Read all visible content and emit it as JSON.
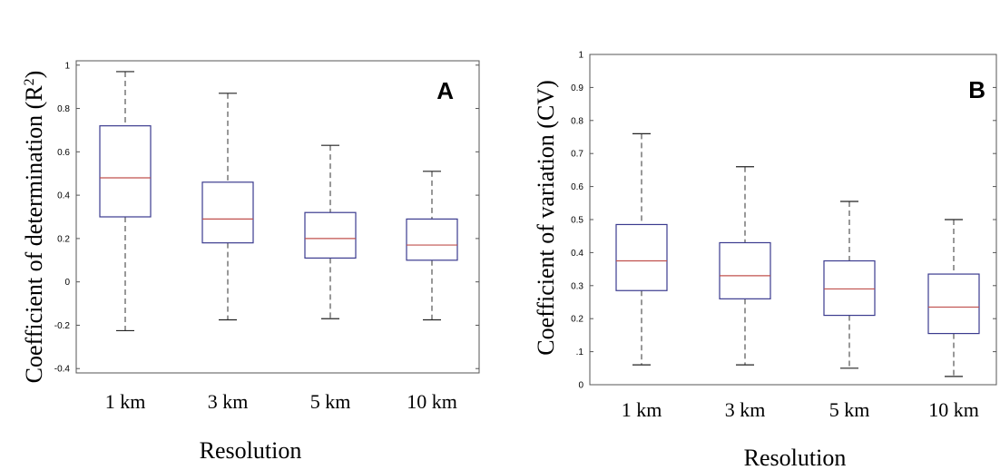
{
  "chart_data": [
    {
      "type": "box",
      "panel_label": "A",
      "xlabel": "Resolution",
      "ylabel": "Coefficient of determination (R",
      "ylabel_sup": "2",
      "ylabel_close": ")",
      "categories": [
        "1 km",
        "3 km",
        "5 km",
        "10 km"
      ],
      "ylim": [
        -0.42,
        1.02
      ],
      "yticks": [
        -0.4,
        -0.2,
        0,
        0.2,
        0.4,
        0.6,
        0.8,
        1
      ],
      "ytick_labels": [
        "-0.4",
        "-0.2",
        "0",
        "0.2",
        "0.4",
        "0.6",
        "0.8",
        "1"
      ],
      "boxes": [
        {
          "min": -0.225,
          "q1": 0.3,
          "median": 0.48,
          "q3": 0.72,
          "max": 0.97
        },
        {
          "min": -0.175,
          "q1": 0.18,
          "median": 0.29,
          "q3": 0.46,
          "max": 0.87
        },
        {
          "min": -0.17,
          "q1": 0.11,
          "median": 0.2,
          "q3": 0.32,
          "max": 0.63
        },
        {
          "min": -0.175,
          "q1": 0.1,
          "median": 0.17,
          "q3": 0.29,
          "max": 0.51
        }
      ]
    },
    {
      "type": "box",
      "panel_label": "B",
      "xlabel": "Resolution",
      "ylabel": "Coefficient of variation (CV)",
      "categories": [
        "1 km",
        "3 km",
        "5 km",
        "10 km"
      ],
      "ylim": [
        0,
        1
      ],
      "yticks": [
        0,
        0.1,
        0.2,
        0.3,
        0.4,
        0.5,
        0.6,
        0.7,
        0.8,
        0.9,
        1
      ],
      "ytick_labels": [
        "0",
        ".1",
        "0.2",
        "0.3",
        "0.4",
        "0.5",
        "0.6",
        "0.7",
        "0.8",
        "0.9",
        "1"
      ],
      "boxes": [
        {
          "min": 0.06,
          "q1": 0.285,
          "median": 0.375,
          "q3": 0.485,
          "max": 0.76
        },
        {
          "min": 0.06,
          "q1": 0.26,
          "median": 0.33,
          "q3": 0.43,
          "max": 0.66
        },
        {
          "min": 0.05,
          "q1": 0.21,
          "median": 0.29,
          "q3": 0.375,
          "max": 0.555
        },
        {
          "min": 0.025,
          "q1": 0.155,
          "median": 0.235,
          "q3": 0.335,
          "max": 0.5
        }
      ]
    }
  ],
  "colors": {
    "box": "#3b3b8f",
    "median": "#c0504d",
    "whisker": "#555555",
    "frame": "#555555"
  }
}
